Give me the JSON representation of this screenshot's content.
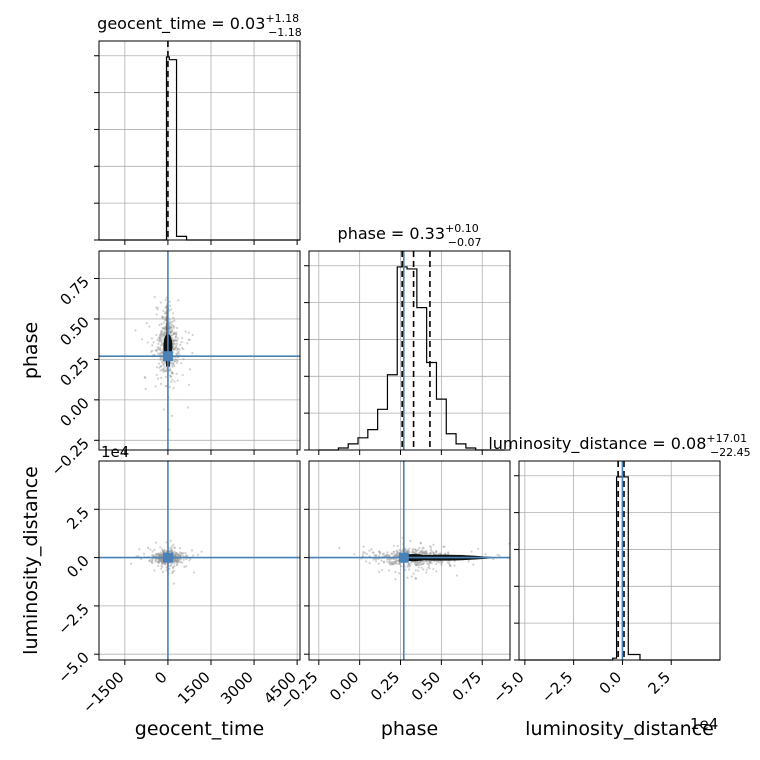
{
  "chart_data": {
    "type": "corner",
    "parameters": [
      "geocent_time",
      "phase",
      "luminosity_distance"
    ],
    "axis_labels": {
      "geocent_time": "geocent_time",
      "phase": "phase",
      "luminosity_distance": "luminosity_distance"
    },
    "titles": {
      "geocent_time": {
        "name": "geocent_time",
        "median": "0.03",
        "plus": "+1.18",
        "minus": "−1.18"
      },
      "phase": {
        "name": "phase",
        "median": "0.33",
        "plus": "+0.10",
        "minus": "−0.07"
      },
      "luminosity_distance": {
        "name": "luminosity_distance",
        "median": "0.08",
        "plus": "+17.01",
        "minus": "−22.45"
      }
    },
    "ranges": {
      "geocent_time": [
        -2400,
        4600
      ],
      "phase": [
        -0.31,
        0.92
      ],
      "luminosity_distance": [
        -53000,
        50000
      ]
    },
    "ticks": {
      "geocent_time": [
        {
          "v": -1500,
          "t": "−1500"
        },
        {
          "v": 0,
          "t": "0"
        },
        {
          "v": 1500,
          "t": "1500"
        },
        {
          "v": 3000,
          "t": "3000"
        },
        {
          "v": 4500,
          "t": "4500"
        }
      ],
      "phase": [
        {
          "v": -0.25,
          "t": "−0.25"
        },
        {
          "v": 0.0,
          "t": "0.00"
        },
        {
          "v": 0.25,
          "t": "0.25"
        },
        {
          "v": 0.5,
          "t": "0.50"
        },
        {
          "v": 0.75,
          "t": "0.75"
        }
      ],
      "luminosity_distance": [
        {
          "v": -50000,
          "t": "−5.0"
        },
        {
          "v": -25000,
          "t": "−2.5"
        },
        {
          "v": 0,
          "t": "0.0"
        },
        {
          "v": 25000,
          "t": "2.5"
        }
      ]
    },
    "offset_texts": {
      "luminosity_distance_y": "1e4",
      "luminosity_distance_x": "1e4"
    },
    "truths": {
      "geocent_time": 0,
      "phase": 0.27,
      "luminosity_distance": 0
    },
    "quantiles": {
      "geocent_time": [
        0.03
      ],
      "phase": [
        0.26,
        0.33,
        0.43
      ],
      "luminosity_distance": [
        -2200,
        800
      ]
    },
    "histograms": {
      "geocent_time": {
        "edges": [
          -2400,
          -2050,
          -1700,
          -1350,
          -1000,
          -650,
          -300,
          -50,
          50,
          300,
          650,
          1000,
          1350,
          1700,
          2050,
          2400,
          2750,
          3100,
          3450,
          3800,
          4150,
          4600
        ],
        "counts": [
          0,
          0,
          0,
          0,
          0,
          0,
          0,
          1.0,
          0.985,
          0.02,
          0,
          0,
          0,
          0,
          0,
          0,
          0,
          0,
          0,
          0,
          0
        ]
      },
      "phase": {
        "edges": [
          -0.25,
          -0.19,
          -0.13,
          -0.07,
          -0.01,
          0.05,
          0.11,
          0.17,
          0.23,
          0.29,
          0.35,
          0.41,
          0.47,
          0.53,
          0.59,
          0.65,
          0.71,
          0.77,
          0.83,
          0.89
        ],
        "counts": [
          0,
          0.0,
          0.01,
          0.03,
          0.06,
          0.1,
          0.2,
          0.37,
          0.9,
          0.89,
          0.7,
          0.43,
          0.25,
          0.08,
          0.03,
          0.01,
          0.0,
          0,
          0
        ]
      },
      "luminosity_distance": {
        "edges": [
          -53000,
          -47000,
          -41000,
          -35000,
          -29000,
          -23000,
          -17000,
          -11000,
          -5000,
          -3000,
          3000,
          9000,
          15000,
          21000,
          27000,
          33000,
          39000,
          45000,
          50000
        ],
        "counts": [
          0,
          0,
          0,
          0,
          0,
          0,
          0,
          0,
          0.01,
          1.0,
          0.03,
          0,
          0,
          0,
          0,
          0,
          0,
          0
        ]
      }
    },
    "grid": true
  }
}
